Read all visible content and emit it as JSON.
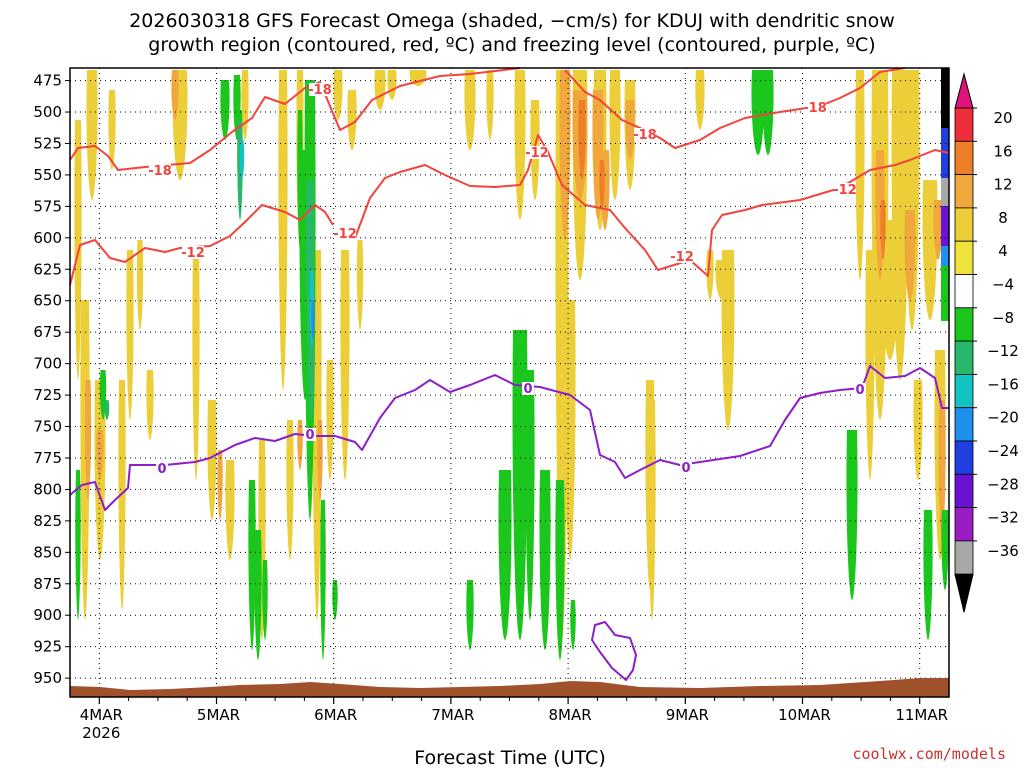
{
  "chart_data": {
    "type": "heatmap",
    "title_line1": "2026030318 GFS Forecast Omega (shaded, −cm/s) for KDUJ with dendritic snow",
    "title_line2": "growth region (contoured, red, ºC) and freezing level (contoured, purple, ºC)",
    "xlabel": "Forecast Time (UTC)",
    "ylabel": "",
    "credit": "coolwx.com/models",
    "y_axis_hpa": {
      "ticks": [
        "475",
        "500",
        "525",
        "550",
        "575",
        "600",
        "625",
        "650",
        "675",
        "700",
        "725",
        "750",
        "775",
        "800",
        "825",
        "850",
        "875",
        "900",
        "925",
        "950"
      ],
      "ylim": [
        465,
        965
      ]
    },
    "x_axis_days": {
      "ticks": [
        "4MAR",
        "5MAR",
        "6MAR",
        "7MAR",
        "8MAR",
        "9MAR",
        "10MAR",
        "11MAR"
      ],
      "year": "2026",
      "xlim": [
        -0.25,
        7.25
      ]
    },
    "colorbar": {
      "labels": [
        "20",
        "16",
        "12",
        "8",
        "4",
        "−4",
        "−8",
        "−12",
        "−16",
        "−20",
        "−24",
        "−28",
        "−32",
        "−36"
      ],
      "colors": [
        "#ee2e3b",
        "#ef7f27",
        "#f0a83c",
        "#eccf38",
        "#eee339",
        "#ffffff",
        "#1bc61d",
        "#28b86b",
        "#12c3c3",
        "#1e90ee",
        "#1f3fe0",
        "#6a12d4",
        "#9c1cc3",
        "#a8a8a8"
      ],
      "top_color": "#e0127b",
      "bottom_color": "#000000"
    },
    "contours": {
      "dgz_labels": [
        "-18",
        "-18",
        "-18",
        "-18",
        "-12",
        "-12",
        "-12",
        "-12",
        "-12"
      ],
      "freezing_labels": [
        "0",
        "0",
        "0",
        "0",
        "0"
      ],
      "dgz_color": "#f2433e",
      "freezing_color": "#8d1ec8"
    },
    "terrain_color": "#a0522d"
  }
}
